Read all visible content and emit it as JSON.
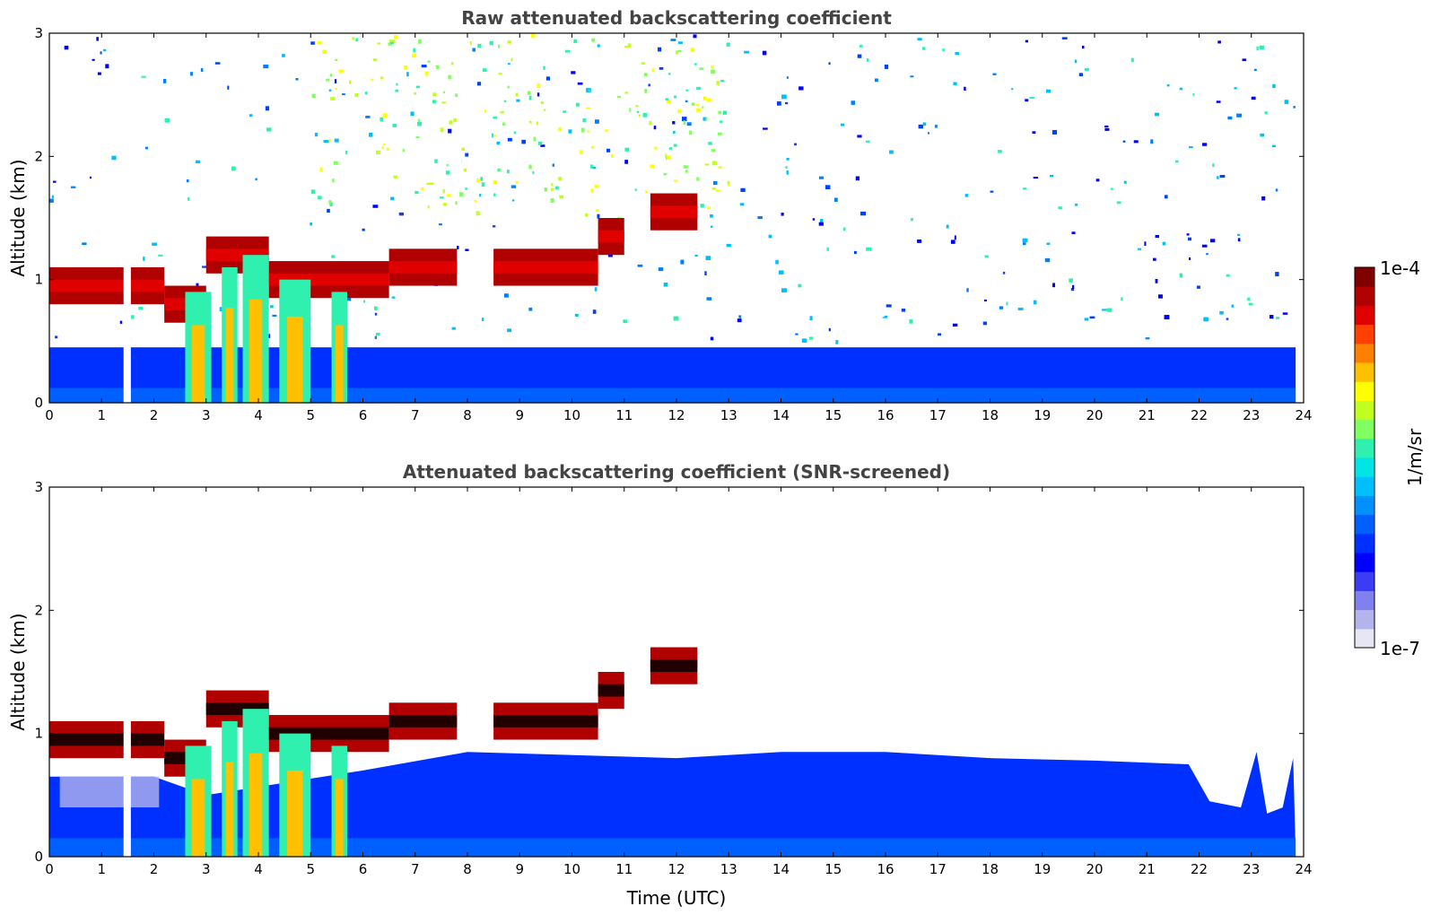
{
  "chart_data": [
    {
      "type": "heatmap",
      "title": "Raw attenuated backscattering coefficient",
      "xlabel": "",
      "ylabel": "Altitude (km)",
      "xlim": [
        0,
        24
      ],
      "ylim": [
        0,
        3
      ],
      "xticks": [
        0,
        1,
        2,
        3,
        4,
        5,
        6,
        7,
        8,
        9,
        10,
        11,
        12,
        13,
        14,
        15,
        16,
        17,
        18,
        19,
        20,
        21,
        22,
        23,
        24
      ],
      "yticks": [
        0,
        1,
        2,
        3
      ],
      "color_scale": "log",
      "clim": [
        1e-07,
        0.0001
      ],
      "no_data_gaps_utc": [
        [
          1.42,
          1.56
        ]
      ],
      "cloud_layers": [
        {
          "t_start": 0.0,
          "t_end": 2.2,
          "alt_km": 0.95,
          "intensity": "high"
        },
        {
          "t_start": 2.2,
          "t_end": 3.0,
          "alt_km": 0.8,
          "intensity": "high"
        },
        {
          "t_start": 3.0,
          "t_end": 4.2,
          "alt_km": 1.2,
          "intensity": "high"
        },
        {
          "t_start": 4.2,
          "t_end": 6.5,
          "alt_km": 1.0,
          "intensity": "high"
        },
        {
          "t_start": 6.5,
          "t_end": 7.8,
          "alt_km": 1.1,
          "intensity": "high"
        },
        {
          "t_start": 8.5,
          "t_end": 10.5,
          "alt_km": 1.1,
          "intensity": "high"
        },
        {
          "t_start": 10.5,
          "t_end": 11.0,
          "alt_km": 1.35,
          "intensity": "high"
        },
        {
          "t_start": 11.5,
          "t_end": 12.4,
          "alt_km": 1.55,
          "intensity": "high"
        }
      ]
    },
    {
      "type": "heatmap",
      "title": "Attenuated backscattering coefficient (SNR-screened)",
      "xlabel": "Time (UTC)",
      "ylabel": "Altitude (km)",
      "xlim": [
        0,
        24
      ],
      "ylim": [
        0,
        3
      ],
      "xticks": [
        0,
        1,
        2,
        3,
        4,
        5,
        6,
        7,
        8,
        9,
        10,
        11,
        12,
        13,
        14,
        15,
        16,
        17,
        18,
        19,
        20,
        21,
        22,
        23,
        24
      ],
      "yticks": [
        0,
        1,
        2,
        3
      ],
      "color_scale": "log",
      "clim": [
        1e-07,
        0.0001
      ],
      "no_data_gaps_utc": [
        [
          1.42,
          1.56
        ]
      ],
      "boundary_layer_top_km": [
        [
          0,
          0.65
        ],
        [
          2,
          0.65
        ],
        [
          3,
          0.5
        ],
        [
          6,
          0.7
        ],
        [
          8,
          0.85
        ],
        [
          12,
          0.8
        ],
        [
          14,
          0.85
        ],
        [
          16,
          0.85
        ],
        [
          18,
          0.8
        ],
        [
          20,
          0.78
        ],
        [
          21.8,
          0.75
        ],
        [
          22.2,
          0.45
        ],
        [
          22.8,
          0.4
        ],
        [
          23.1,
          0.85
        ],
        [
          23.3,
          0.35
        ],
        [
          23.6,
          0.4
        ],
        [
          23.8,
          0.8
        ]
      ]
    }
  ],
  "colorbar": {
    "label": "1/m/sr",
    "max_label": "1e-4",
    "min_label": "1e-7",
    "colors": [
      "#e6e6f5",
      "#b4b4ec",
      "#8080ee",
      "#3c3cf5",
      "#0000ff",
      "#0030ff",
      "#0060ff",
      "#0090ff",
      "#00bfff",
      "#00e5e5",
      "#30f0b0",
      "#80ff60",
      "#c0ff20",
      "#ffff00",
      "#ffc000",
      "#ff8000",
      "#ff4000",
      "#e00000",
      "#b00000",
      "#800000"
    ]
  }
}
